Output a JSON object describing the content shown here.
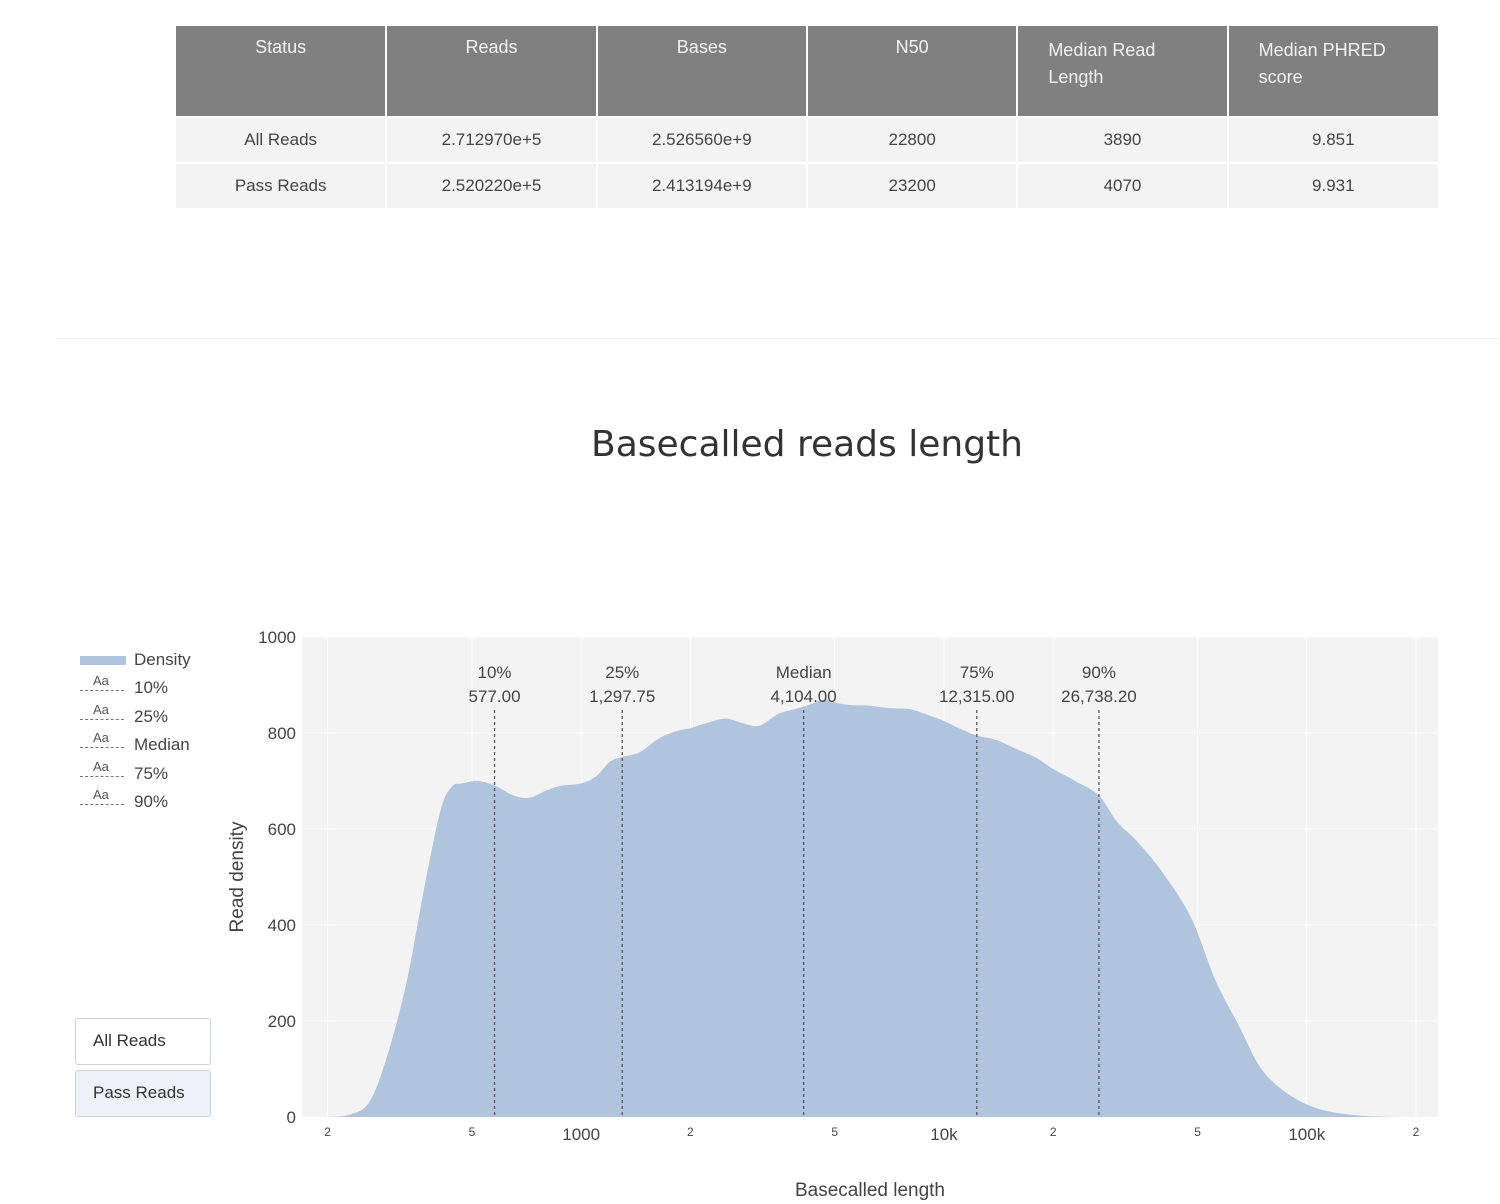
{
  "stats_table": {
    "headers": [
      "Status",
      "Reads",
      "Bases",
      "N50",
      "Median Read Length",
      "Median PHRED score"
    ],
    "rows": [
      [
        "All Reads",
        "2.712970e+5",
        "2.526560e+9",
        "22800",
        "3890",
        "9.851"
      ],
      [
        "Pass Reads",
        "2.520220e+5",
        "2.413194e+9",
        "23200",
        "4070",
        "9.931"
      ]
    ]
  },
  "controls": {
    "buttons": [
      "All Reads",
      "Pass Reads"
    ],
    "active": "Pass Reads"
  },
  "chart_data": {
    "type": "area",
    "title": "Basecalled reads length",
    "xlabel": "Basecalled length",
    "ylabel": "Read density",
    "x_scale": "log",
    "xlim": [
      170,
      230000
    ],
    "ylim": [
      0,
      1000
    ],
    "y_ticks": [
      "0",
      "200",
      "400",
      "600",
      "800",
      "1000"
    ],
    "x_ticks": [
      {
        "value": 200,
        "label": "2"
      },
      {
        "value": 500,
        "label": "5"
      },
      {
        "value": 1000,
        "label": "1000"
      },
      {
        "value": 2000,
        "label": "2"
      },
      {
        "value": 5000,
        "label": "5"
      },
      {
        "value": 10000,
        "label": "10k"
      },
      {
        "value": 20000,
        "label": "2"
      },
      {
        "value": 50000,
        "label": "5"
      },
      {
        "value": 100000,
        "label": "100k"
      },
      {
        "value": 200000,
        "label": "2"
      }
    ],
    "grid": true,
    "legend_position": "left",
    "legend": [
      "Density",
      "10%",
      "25%",
      "Median",
      "75%",
      "90%"
    ],
    "fill_color": "#b0c4de",
    "series": [
      {
        "name": "Density",
        "x": [
          200,
          230,
          260,
          290,
          330,
          370,
          410,
          440,
          470,
          520,
          580,
          650,
          720,
          800,
          880,
          1000,
          1100,
          1200,
          1300,
          1450,
          1650,
          1850,
          2000,
          2200,
          2500,
          2800,
          3100,
          3500,
          3900,
          4300,
          4700,
          5100,
          5600,
          6200,
          7000,
          8000,
          9000,
          10000,
          11000,
          12300,
          14000,
          16000,
          18000,
          20000,
          23000,
          26700,
          30000,
          34000,
          40000,
          48000,
          56000,
          65000,
          75000,
          90000,
          110000,
          140000,
          180000,
          230000
        ],
        "values": [
          0,
          5,
          30,
          120,
          280,
          480,
          640,
          688,
          695,
          700,
          690,
          670,
          665,
          680,
          690,
          695,
          710,
          740,
          750,
          760,
          790,
          805,
          810,
          820,
          830,
          820,
          815,
          840,
          850,
          860,
          870,
          862,
          858,
          857,
          852,
          850,
          838,
          825,
          810,
          795,
          785,
          765,
          748,
          725,
          700,
          670,
          615,
          575,
          510,
          415,
          285,
          190,
          100,
          45,
          15,
          3,
          0,
          0
        ]
      }
    ],
    "quantiles": [
      {
        "name": "10%",
        "value": 577.0,
        "label": "577.00"
      },
      {
        "name": "25%",
        "value": 1297.75,
        "label": "1,297.75"
      },
      {
        "name": "Median",
        "value": 4104.0,
        "label": "4,104.00"
      },
      {
        "name": "75%",
        "value": 12315.0,
        "label": "12,315.00"
      },
      {
        "name": "90%",
        "value": 26738.2,
        "label": "26,738.20"
      }
    ]
  }
}
